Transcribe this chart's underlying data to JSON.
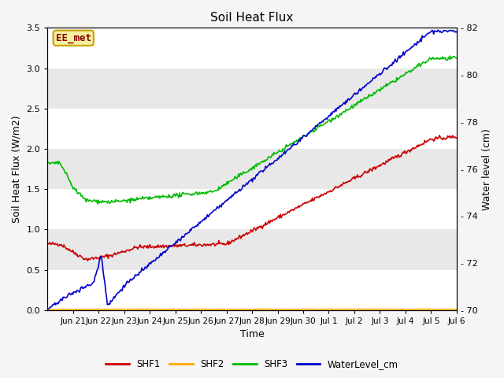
{
  "title": "Soil Heat Flux",
  "ylabel_left": "Soil Heat Flux (W/m2)",
  "ylabel_right": "Water level (cm)",
  "xlabel": "Time",
  "ylim_left": [
    0.0,
    3.5
  ],
  "ylim_right": [
    70,
    82
  ],
  "fig_bg_color": "#f5f5f5",
  "plot_bg_color": "#dcdcdc",
  "annotation_text": "EE_met",
  "annotation_box_facecolor": "#f5f0a0",
  "annotation_box_edgecolor": "#c8a000",
  "annotation_text_color": "#8b0000",
  "x_tick_labels": [
    "Jun 21",
    "Jun 22",
    "Jun 23",
    "Jun 24",
    "Jun 25",
    "Jun 26",
    "Jun 27",
    "Jun 28",
    "Jun 29",
    "Jun 30",
    "Jul 1",
    "Jul 2",
    "Jul 3",
    "Jul 4",
    "Jul 5",
    "Jul 6"
  ],
  "series": {
    "SHF1": {
      "color": "#cc0000",
      "lw": 1.2
    },
    "SHF2": {
      "color": "#ffaa00",
      "lw": 1.2
    },
    "SHF3": {
      "color": "#00bb00",
      "lw": 1.2
    },
    "WaterLevel_cm": {
      "color": "#0000cc",
      "lw": 1.2
    }
  },
  "left_yticks": [
    0.0,
    0.5,
    1.0,
    1.5,
    2.0,
    2.5,
    3.0,
    3.5
  ],
  "right_yticks": [
    70,
    72,
    74,
    76,
    78,
    80,
    82
  ],
  "band_colors": [
    "#ffffff",
    "#e8e8e8"
  ]
}
